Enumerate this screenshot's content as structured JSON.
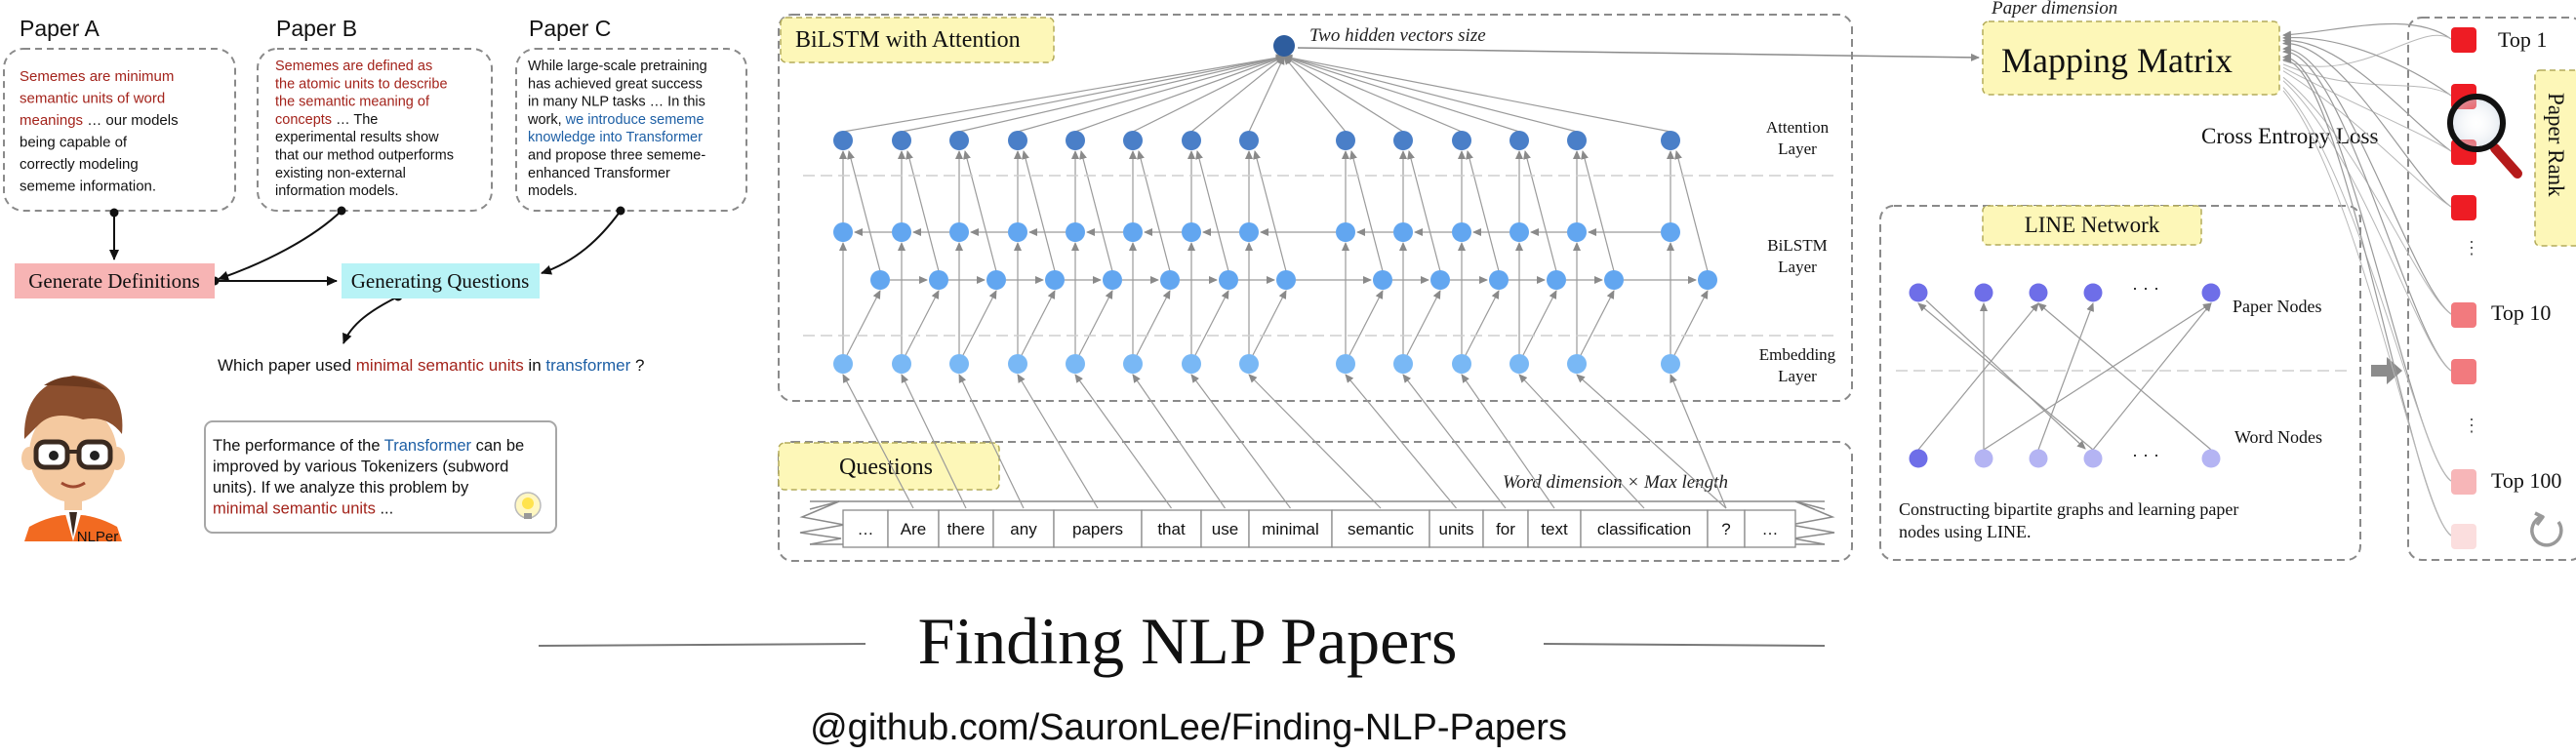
{
  "papers": {
    "a": {
      "title": "Paper A",
      "lines": [
        [
          {
            "t": "Sememes are minimum",
            "c": "red"
          }
        ],
        [
          {
            "t": "semantic units of word",
            "c": "red"
          }
        ],
        [
          {
            "t": "meanings",
            "c": "red"
          },
          {
            "t": " … our models",
            "c": "black"
          }
        ],
        [
          {
            "t": "being capable of",
            "c": "black"
          }
        ],
        [
          {
            "t": "correctly modeling",
            "c": "black"
          }
        ],
        [
          {
            "t": "sememe information.",
            "c": "black"
          }
        ]
      ]
    },
    "b": {
      "title": "Paper B",
      "lines": [
        [
          {
            "t": "Sememes are defined as",
            "c": "red"
          }
        ],
        [
          {
            "t": "the atomic units to describe",
            "c": "red"
          }
        ],
        [
          {
            "t": "the semantic meaning of",
            "c": "red"
          }
        ],
        [
          {
            "t": "concepts",
            "c": "red"
          },
          {
            "t": " … The",
            "c": "black"
          }
        ],
        [
          {
            "t": "experimental results show",
            "c": "black"
          }
        ],
        [
          {
            "t": "that our method outperforms",
            "c": "black"
          }
        ],
        [
          {
            "t": "existing non-external",
            "c": "black"
          }
        ],
        [
          {
            "t": "information models.",
            "c": "black"
          }
        ]
      ]
    },
    "c": {
      "title": "Paper C",
      "lines": [
        [
          {
            "t": "While large-scale pretraining",
            "c": "black"
          }
        ],
        [
          {
            "t": "has achieved great success",
            "c": "black"
          }
        ],
        [
          {
            "t": "in many NLP tasks … In this",
            "c": "black"
          }
        ],
        [
          {
            "t": "work, ",
            "c": "black"
          },
          {
            "t": "we introduce sememe",
            "c": "blue"
          }
        ],
        [
          {
            "t": "knowledge into Transformer",
            "c": "blue"
          }
        ],
        [
          {
            "t": "and propose three sememe-",
            "c": "black"
          }
        ],
        [
          {
            "t": "enhanced Transformer",
            "c": "black"
          }
        ],
        [
          {
            "t": "models.",
            "c": "black"
          }
        ]
      ]
    }
  },
  "steps": {
    "generate_definitions": "Generate Definitions",
    "generating_questions": "Generating Questions"
  },
  "question_line": [
    {
      "t": "Which paper used ",
      "c": "black"
    },
    {
      "t": "minimal semantic units",
      "c": "red"
    },
    {
      "t": " in ",
      "c": "black"
    },
    {
      "t": "transformer",
      "c": "blue"
    },
    {
      "t": " ?",
      "c": "black"
    }
  ],
  "persona": {
    "label": "NLPer"
  },
  "speech": [
    [
      {
        "t": "The performance of the ",
        "c": "black"
      },
      {
        "t": "Transformer",
        "c": "blue"
      },
      {
        "t": " can be",
        "c": "black"
      }
    ],
    [
      {
        "t": "improved by various Tokenizers (subword",
        "c": "black"
      }
    ],
    [
      {
        "t": "units). If we analyze this problem by",
        "c": "black"
      }
    ],
    [
      {
        "t": "minimal semantic units",
        "c": "red"
      },
      {
        "t": " ...",
        "c": "black"
      }
    ]
  ],
  "bilstm": {
    "title": "BiLSTM with Attention",
    "hidden_label": "Two hidden vectors size",
    "layers": [
      "Attention\nLayer",
      "BiLSTM\nLayer",
      "Embedding\nLayer"
    ]
  },
  "questions": {
    "title": "Questions",
    "dim_label": "Word dimension × Max length",
    "tokens": [
      "…",
      "Are",
      "there",
      "any",
      "papers",
      "that",
      "use",
      "minimal",
      "semantic",
      "units",
      "for",
      "text",
      "classification",
      "?",
      "…"
    ]
  },
  "mapping": {
    "dim_label": "Paper dimension",
    "title": "Mapping Matrix",
    "loss_label": "Cross Entropy Loss"
  },
  "line_network": {
    "title": "LINE Network",
    "paper_nodes": "Paper Nodes",
    "word_nodes": "Word Nodes",
    "dots": "· · ·",
    "caption": [
      "Constructing bipartite graphs and learning paper",
      "nodes using LINE."
    ]
  },
  "rank": {
    "label": "Paper Rank",
    "top1": "Top 1",
    "top10": "Top 10",
    "top100": "Top 100"
  },
  "footer": {
    "title": "Finding NLP Papers",
    "repo": "@github.com/SauronLee/Finding-NLP-Papers"
  },
  "colors": {
    "red": "#a3231b",
    "blue": "#1d5fa5",
    "black": "#111111",
    "node_dark": "#4a7fc8",
    "node_light": "#62a6f0",
    "paper_node": "#6e6ee8",
    "word_node": "#b4b4f3",
    "rank_red": "#ee1c24",
    "title_box": "#fdf7b8",
    "defs_box": "#f7b4b4",
    "gen_box": "#b8f3f6"
  }
}
